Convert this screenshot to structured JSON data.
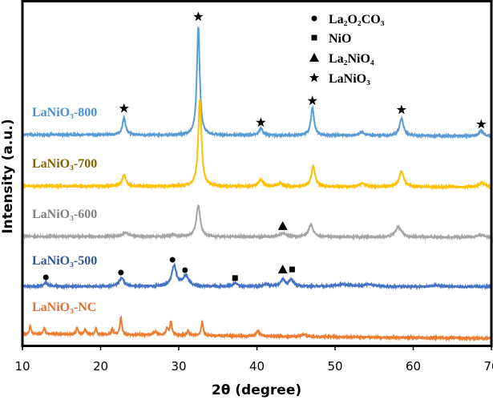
{
  "chart_data": {
    "type": "line",
    "title": "",
    "xlabel": "2θ (degree)",
    "ylabel": "Intensity (a.u.)",
    "xlim": [
      10,
      70
    ],
    "ylim": [
      0,
      100
    ],
    "xticks": [
      10,
      20,
      30,
      40,
      50,
      60,
      70
    ],
    "yticks_shown": false,
    "grid": false,
    "legend_position": "top-right",
    "legend": [
      {
        "symbol": "circle",
        "label": "La₂O₂CO₃"
      },
      {
        "symbol": "square",
        "label": "NiO"
      },
      {
        "symbol": "triangle",
        "label": "La₂NiO₄"
      },
      {
        "symbol": "star",
        "label": "LaNiO₃"
      }
    ],
    "series": [
      {
        "name": "LaNiO₃-800",
        "color": "#5b9bd5",
        "label_color": "#4a8fd0",
        "baseline": [
          61.4,
          61.0
        ],
        "peaks": [
          [
            23.0,
            5.0,
            0.25
          ],
          [
            32.5,
            31.5,
            0.22
          ],
          [
            40.5,
            2.0,
            0.3
          ],
          [
            47.1,
            8.0,
            0.25
          ],
          [
            53.4,
            1.0,
            0.4
          ],
          [
            58.5,
            5.0,
            0.3
          ],
          [
            68.7,
            1.5,
            0.3
          ]
        ]
      },
      {
        "name": "LaNiO₃-700",
        "color": "#ffc000",
        "label_color": "#806000",
        "baseline": [
          46.5,
          46.2
        ],
        "peaks": [
          [
            23.0,
            3.3,
            0.28
          ],
          [
            32.7,
            25.0,
            0.25
          ],
          [
            40.5,
            2.0,
            0.35
          ],
          [
            43.0,
            0.8,
            0.4
          ],
          [
            47.2,
            6.0,
            0.28
          ],
          [
            53.5,
            1.0,
            0.4
          ],
          [
            58.5,
            4.5,
            0.35
          ],
          [
            68.8,
            1.2,
            0.4
          ]
        ]
      },
      {
        "name": "LaNiO₃-600",
        "color": "#a5a5a5",
        "label_color": "#808080",
        "baseline": [
          31.9,
          31.6
        ],
        "peaks": [
          [
            23.2,
            1.0,
            0.5
          ],
          [
            29.3,
            0.6,
            0.3
          ],
          [
            32.5,
            9.0,
            0.3
          ],
          [
            43.3,
            1.0,
            0.5
          ],
          [
            46.9,
            3.5,
            0.35
          ],
          [
            58.1,
            3.0,
            0.45
          ],
          [
            68.7,
            0.7,
            0.5
          ]
        ]
      },
      {
        "name": "LaNiO₃-500",
        "color": "#4472c4",
        "label_color": "#2f5597",
        "baseline": [
          17.4,
          17.3
        ],
        "peaks": [
          [
            13.0,
            1.0,
            0.3
          ],
          [
            22.7,
            2.5,
            0.35
          ],
          [
            29.4,
            6.0,
            0.35
          ],
          [
            30.9,
            3.0,
            0.45
          ],
          [
            37.2,
            1.0,
            0.3
          ],
          [
            41.2,
            0.5,
            0.5
          ],
          [
            43.3,
            2.0,
            0.35
          ],
          [
            44.4,
            1.8,
            0.35
          ],
          [
            51.0,
            0.6,
            1.2
          ],
          [
            54.3,
            0.6,
            0.6
          ],
          [
            63.0,
            0.4,
            0.5
          ]
        ]
      },
      {
        "name": "LaNiO₃-NC",
        "color": "#ed7d31",
        "label_color": "#e07030",
        "baseline": [
          3.6,
          2.3
        ],
        "peaks": [
          [
            11.0,
            2.5,
            0.12
          ],
          [
            12.8,
            2.0,
            0.12
          ],
          [
            17.0,
            2.0,
            0.15
          ],
          [
            18.0,
            1.5,
            0.15
          ],
          [
            19.4,
            2.0,
            0.12
          ],
          [
            21.5,
            1.5,
            0.15
          ],
          [
            22.6,
            5.0,
            0.15
          ],
          [
            27.0,
            1.0,
            0.3
          ],
          [
            28.5,
            2.0,
            0.15
          ],
          [
            29.0,
            4.0,
            0.15
          ],
          [
            31.2,
            1.5,
            0.15
          ],
          [
            33.0,
            4.0,
            0.15
          ],
          [
            40.1,
            1.5,
            0.25
          ],
          [
            46.0,
            0.7,
            0.3
          ]
        ]
      }
    ],
    "markers": [
      {
        "symbol": "star",
        "x": 23.0,
        "y": 69.0
      },
      {
        "symbol": "star",
        "x": 32.5,
        "y": 95.6
      },
      {
        "symbol": "star",
        "x": 40.5,
        "y": 64.9
      },
      {
        "symbol": "star",
        "x": 47.1,
        "y": 71.2
      },
      {
        "symbol": "star",
        "x": 58.5,
        "y": 68.6
      },
      {
        "symbol": "star",
        "x": 68.7,
        "y": 64.4
      },
      {
        "symbol": "triangle",
        "x": 43.3,
        "y": 34.9
      },
      {
        "symbol": "circle",
        "x": 13.0,
        "y": 20.0
      },
      {
        "symbol": "circle",
        "x": 22.6,
        "y": 21.4
      },
      {
        "symbol": "circle",
        "x": 29.2,
        "y": 25.1
      },
      {
        "symbol": "circle",
        "x": 30.8,
        "y": 22.1
      },
      {
        "symbol": "square",
        "x": 37.2,
        "y": 19.8
      },
      {
        "symbol": "triangle",
        "x": 43.3,
        "y": 22.3
      },
      {
        "symbol": "square",
        "x": 44.5,
        "y": 22.3
      }
    ]
  }
}
